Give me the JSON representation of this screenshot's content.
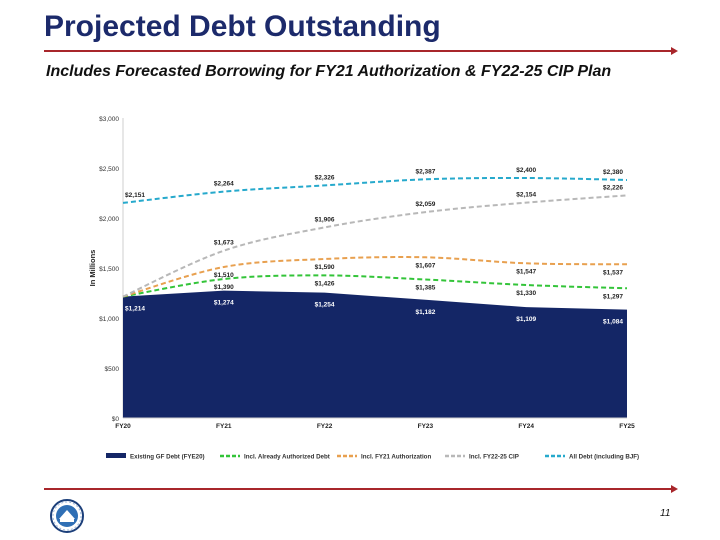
{
  "slide": {
    "title": "Projected Debt Outstanding",
    "subtitle": "Includes Forecasted Borrowing for FY21 Authorization & FY22-25 CIP Plan",
    "page_number": "11"
  },
  "colors": {
    "accent_rule": "#a8262b",
    "title": "#1c2a6b"
  },
  "chart_data": {
    "type": "area",
    "ylabel": "In Millions",
    "xlabel": "",
    "categories": [
      "FY20",
      "FY21",
      "FY22",
      "FY23",
      "FY24",
      "FY25"
    ],
    "ylim": [
      0,
      3000
    ],
    "yticks": [
      0,
      500,
      1000,
      1500,
      2000,
      2500,
      3000
    ],
    "ytick_labels": [
      "$0",
      "$500",
      "$1,000",
      "$1,500",
      "$2,000",
      "$2,500",
      "$3,000"
    ],
    "grid": false,
    "legend_position": "bottom",
    "series": [
      {
        "name": "Existing GF Debt (FYE20)",
        "kind": "area",
        "color": "#142666",
        "values": [
          1214,
          1274,
          1254,
          1182,
          1109,
          1084
        ],
        "labels": [
          "$1,214",
          "$1,274",
          "$1,254",
          "$1,182",
          "$1,109",
          "$1,084"
        ]
      },
      {
        "name": "Incl. Already Authorized Debt",
        "kind": "line",
        "color": "#33c439",
        "values": [
          1214,
          1390,
          1426,
          1385,
          1330,
          1297
        ],
        "labels": [
          "",
          "$1,390",
          "$1,426",
          "$1,385",
          "$1,330",
          "$1,297"
        ]
      },
      {
        "name": "Incl. FY21 Authorization",
        "kind": "line",
        "color": "#e8a04f",
        "values": [
          1214,
          1510,
          1590,
          1607,
          1547,
          1537
        ],
        "labels": [
          "",
          "$1,510",
          "$1,590",
          "$1,607",
          "$1,547",
          "$1,537"
        ]
      },
      {
        "name": "Incl. FY22-25 CIP",
        "kind": "line",
        "color": "#b8b8b8",
        "values": [
          1214,
          1673,
          1906,
          2059,
          2154,
          2226
        ],
        "labels": [
          "",
          "$1,673",
          "$1,906",
          "$2,059",
          "$2,154",
          "$2,226"
        ]
      },
      {
        "name": "All Debt (including BJF)",
        "kind": "line",
        "color": "#26a9cc",
        "values": [
          2151,
          2264,
          2326,
          2387,
          2400,
          2380
        ],
        "labels": [
          "$2,151",
          "$2,264",
          "$2,326",
          "$2,387",
          "$2,400",
          "$2,380"
        ]
      }
    ]
  }
}
